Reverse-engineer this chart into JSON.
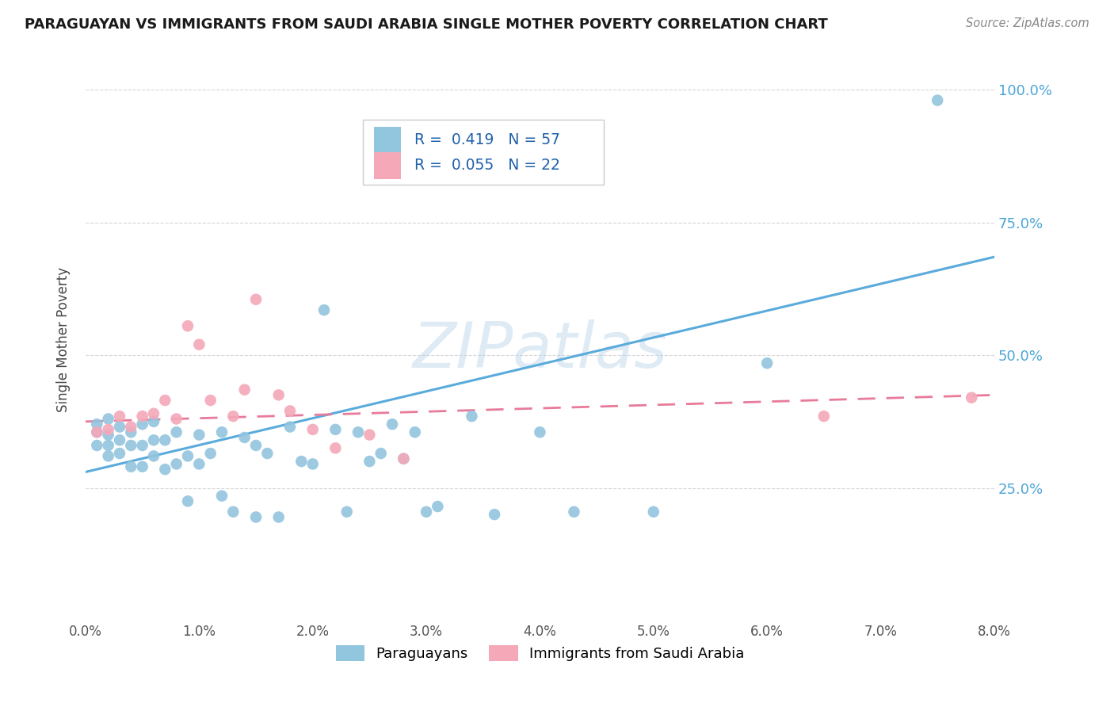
{
  "title": "PARAGUAYAN VS IMMIGRANTS FROM SAUDI ARABIA SINGLE MOTHER POVERTY CORRELATION CHART",
  "source": "Source: ZipAtlas.com",
  "ylabel": "Single Mother Poverty",
  "ytick_labels": [
    "25.0%",
    "50.0%",
    "75.0%",
    "100.0%"
  ],
  "ytick_values": [
    0.25,
    0.5,
    0.75,
    1.0
  ],
  "xlim": [
    0.0,
    0.08
  ],
  "ylim": [
    0.0,
    1.06
  ],
  "watermark": "ZIPatlas",
  "paraguayan_color": "#92C5DE",
  "saudi_color": "#F4A8B8",
  "regression_blue": "#5aabdb",
  "regression_pink": "#e87a9a",
  "blue_line_x0": 0.0,
  "blue_line_y0": 0.28,
  "blue_line_x1": 0.08,
  "blue_line_y1": 0.685,
  "pink_line_x0": 0.0,
  "pink_line_y0": 0.375,
  "pink_line_x1": 0.08,
  "pink_line_y1": 0.425,
  "paraguayan_x": [
    0.001,
    0.001,
    0.001,
    0.002,
    0.002,
    0.002,
    0.002,
    0.003,
    0.003,
    0.003,
    0.004,
    0.004,
    0.004,
    0.005,
    0.005,
    0.005,
    0.006,
    0.006,
    0.006,
    0.007,
    0.007,
    0.008,
    0.008,
    0.009,
    0.009,
    0.01,
    0.01,
    0.011,
    0.012,
    0.012,
    0.013,
    0.014,
    0.015,
    0.015,
    0.016,
    0.017,
    0.018,
    0.019,
    0.02,
    0.021,
    0.022,
    0.023,
    0.024,
    0.025,
    0.026,
    0.027,
    0.028,
    0.029,
    0.03,
    0.031,
    0.034,
    0.036,
    0.04,
    0.043,
    0.05,
    0.06,
    0.075
  ],
  "paraguayan_y": [
    0.33,
    0.355,
    0.37,
    0.31,
    0.33,
    0.35,
    0.38,
    0.315,
    0.34,
    0.365,
    0.29,
    0.33,
    0.355,
    0.29,
    0.33,
    0.37,
    0.31,
    0.34,
    0.375,
    0.285,
    0.34,
    0.295,
    0.355,
    0.225,
    0.31,
    0.295,
    0.35,
    0.315,
    0.235,
    0.355,
    0.205,
    0.345,
    0.195,
    0.33,
    0.315,
    0.195,
    0.365,
    0.3,
    0.295,
    0.585,
    0.36,
    0.205,
    0.355,
    0.3,
    0.315,
    0.37,
    0.305,
    0.355,
    0.205,
    0.215,
    0.385,
    0.2,
    0.355,
    0.205,
    0.205,
    0.485,
    0.98
  ],
  "saudi_x": [
    0.001,
    0.002,
    0.003,
    0.004,
    0.005,
    0.006,
    0.007,
    0.008,
    0.009,
    0.01,
    0.011,
    0.013,
    0.014,
    0.015,
    0.017,
    0.018,
    0.02,
    0.022,
    0.025,
    0.028,
    0.065,
    0.078
  ],
  "saudi_y": [
    0.355,
    0.36,
    0.385,
    0.365,
    0.385,
    0.39,
    0.415,
    0.38,
    0.555,
    0.52,
    0.415,
    0.385,
    0.435,
    0.605,
    0.425,
    0.395,
    0.36,
    0.325,
    0.35,
    0.305,
    0.385,
    0.42
  ]
}
